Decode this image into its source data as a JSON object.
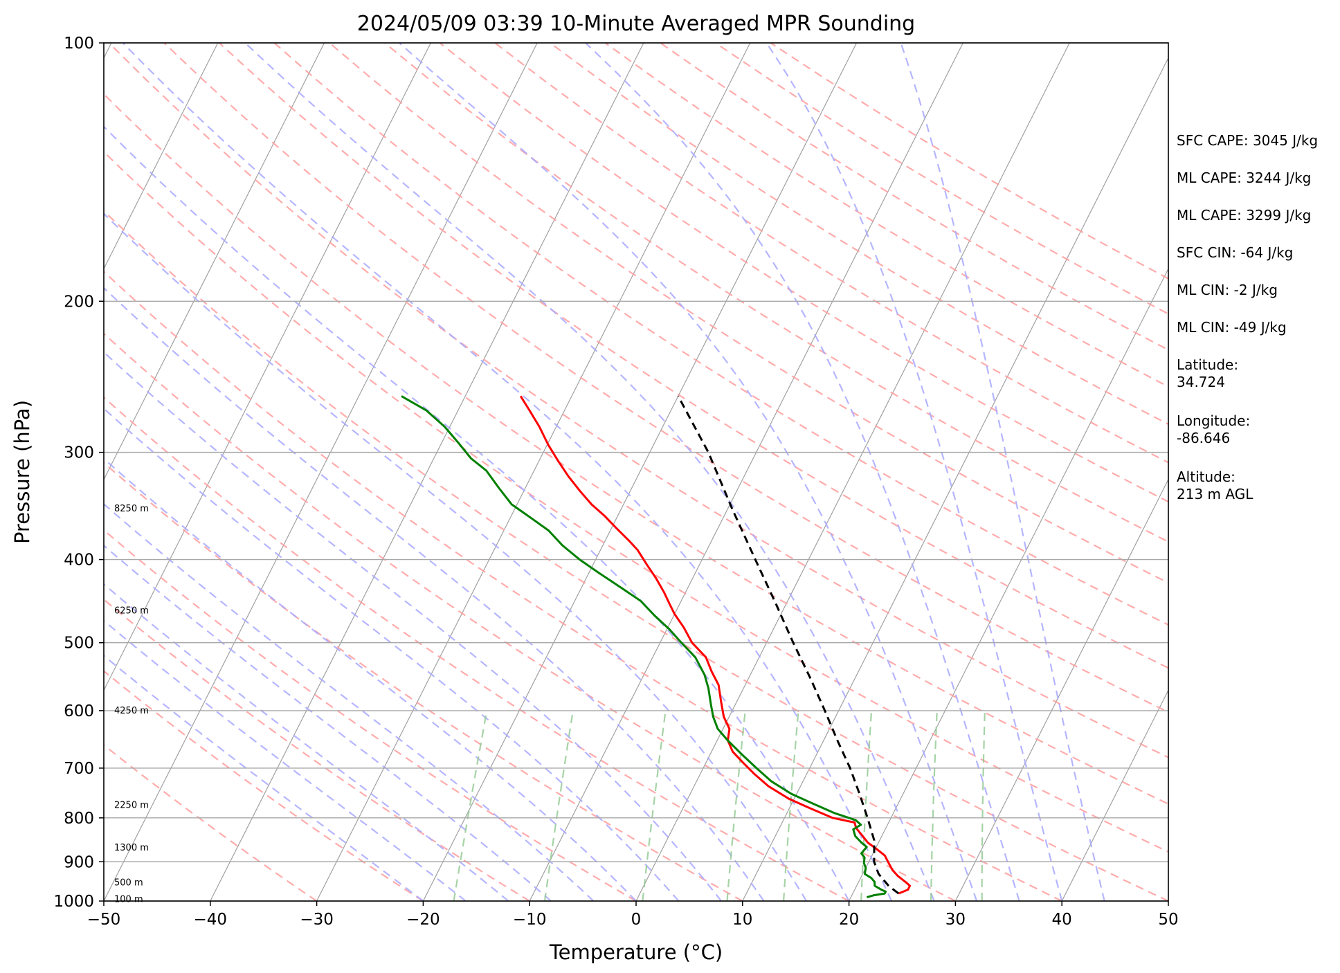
{
  "chart_data": {
    "type": "line",
    "title": "2024/05/09 03:39 10-Minute Averaged MPR Sounding",
    "xlabel": "Temperature (°C)",
    "ylabel": "Pressure (hPa)",
    "xlim": [
      -50,
      50
    ],
    "ylim": [
      1000,
      100
    ],
    "y_scale": "log",
    "x_ticks": [
      -50,
      -40,
      -30,
      -20,
      -10,
      0,
      10,
      20,
      30,
      40,
      50
    ],
    "x_tick_labels": [
      "−50",
      "−40",
      "−30",
      "−20",
      "−10",
      "0",
      "10",
      "20",
      "30",
      "40",
      "50"
    ],
    "y_ticks": [
      100,
      200,
      300,
      400,
      500,
      600,
      700,
      800,
      900,
      1000
    ],
    "y_tick_labels": [
      "100",
      "200",
      "300",
      "400",
      "500",
      "600",
      "700",
      "800",
      "900",
      "1000"
    ],
    "grid": true,
    "background_lines": {
      "isotherms_color": "#a0a0a0",
      "dry_adiabats_color": "#ff9c9c",
      "moist_adiabats_color": "#a8a8ff",
      "mixing_ratio_color": "#90c890"
    },
    "series": [
      {
        "color": "#ff0000",
        "style": "solid",
        "points": [
          [
            24.3,
            980
          ],
          [
            25.0,
            970
          ],
          [
            25.0,
            960
          ],
          [
            24.4,
            950
          ],
          [
            23.4,
            935
          ],
          [
            22.6,
            920
          ],
          [
            22.0,
            905
          ],
          [
            21.2,
            885
          ],
          [
            20.0,
            868
          ],
          [
            19.0,
            855
          ],
          [
            18.2,
            840
          ],
          [
            17.2,
            822
          ],
          [
            16.8,
            810
          ],
          [
            14.5,
            800
          ],
          [
            12.0,
            780
          ],
          [
            9.5,
            760
          ],
          [
            7.0,
            735
          ],
          [
            5.0,
            710
          ],
          [
            3.5,
            690
          ],
          [
            2.0,
            670
          ],
          [
            1.0,
            650
          ],
          [
            0.6,
            630
          ],
          [
            -0.5,
            610
          ],
          [
            -1.5,
            585
          ],
          [
            -2.5,
            560
          ],
          [
            -3.8,
            540
          ],
          [
            -5.0,
            520
          ],
          [
            -7.0,
            500
          ],
          [
            -8.5,
            480
          ],
          [
            -10.0,
            463
          ],
          [
            -11.0,
            450
          ],
          [
            -12.0,
            437
          ],
          [
            -13.5,
            420
          ],
          [
            -15.0,
            405
          ],
          [
            -16.5,
            390
          ],
          [
            -17.8,
            380
          ],
          [
            -19.5,
            368
          ],
          [
            -21.2,
            356
          ],
          [
            -23.0,
            345
          ],
          [
            -24.7,
            333
          ],
          [
            -26.5,
            320
          ],
          [
            -28.2,
            307
          ],
          [
            -29.9,
            294
          ],
          [
            -31.6,
            280
          ],
          [
            -33.3,
            268
          ],
          [
            -34.8,
            258
          ]
        ]
      },
      {
        "color": "#008000",
        "style": "solid",
        "points": [
          [
            21.5,
            990
          ],
          [
            22.0,
            985
          ],
          [
            23.0,
            980
          ],
          [
            23.0,
            975
          ],
          [
            22.5,
            970
          ],
          [
            21.7,
            960
          ],
          [
            21.5,
            950
          ],
          [
            21.0,
            940
          ],
          [
            20.2,
            930
          ],
          [
            20.0,
            915
          ],
          [
            19.6,
            903
          ],
          [
            19.4,
            890
          ],
          [
            18.9,
            880
          ],
          [
            19.1,
            865
          ],
          [
            18.4,
            855
          ],
          [
            17.5,
            840
          ],
          [
            17.0,
            825
          ],
          [
            17.5,
            815
          ],
          [
            16.8,
            805
          ],
          [
            14.5,
            790
          ],
          [
            12.0,
            770
          ],
          [
            9.5,
            750
          ],
          [
            7.0,
            725
          ],
          [
            5.0,
            700
          ],
          [
            3.0,
            675
          ],
          [
            1.0,
            650
          ],
          [
            -0.5,
            630
          ],
          [
            -1.5,
            610
          ],
          [
            -2.3,
            590
          ],
          [
            -3.3,
            565
          ],
          [
            -4.3,
            545
          ],
          [
            -6.0,
            520
          ],
          [
            -8.0,
            500
          ],
          [
            -9.8,
            482
          ],
          [
            -11.8,
            465
          ],
          [
            -13.8,
            447
          ],
          [
            -16.5,
            430
          ],
          [
            -19.0,
            415
          ],
          [
            -21.5,
            400
          ],
          [
            -23.8,
            385
          ],
          [
            -25.8,
            370
          ],
          [
            -28.0,
            358
          ],
          [
            -30.5,
            345
          ],
          [
            -32.5,
            330
          ],
          [
            -34.5,
            315
          ],
          [
            -36.5,
            305
          ],
          [
            -38.5,
            292
          ],
          [
            -40.5,
            280
          ],
          [
            -43.0,
            268
          ],
          [
            -46.0,
            258
          ]
        ]
      },
      {
        "color": "#000000",
        "style": "dashed",
        "points": [
          [
            24.3,
            980
          ],
          [
            23.0,
            960
          ],
          [
            21.5,
            930
          ],
          [
            20.5,
            900
          ],
          [
            19.5,
            850
          ],
          [
            17.8,
            800
          ],
          [
            15.9,
            750
          ],
          [
            13.8,
            700
          ],
          [
            11.3,
            650
          ],
          [
            8.7,
            600
          ],
          [
            5.8,
            550
          ],
          [
            2.5,
            500
          ],
          [
            -1.0,
            450
          ],
          [
            -5.0,
            400
          ],
          [
            -9.5,
            350
          ],
          [
            -14.5,
            300
          ],
          [
            -20.0,
            258
          ]
        ]
      }
    ],
    "height_labels": [
      {
        "text": "8250 m",
        "p": 349
      },
      {
        "text": "6250 m",
        "p": 459
      },
      {
        "text": "4250 m",
        "p": 600
      },
      {
        "text": "2250 m",
        "p": 773
      },
      {
        "text": "1300 m",
        "p": 867
      },
      {
        "text": "500 m",
        "p": 952
      },
      {
        "text": "100 m",
        "p": 995
      }
    ],
    "annotations": [
      "SFC CAPE: 3045 J/kg",
      "ML CAPE: 3244 J/kg",
      "ML CAPE: 3299 J/kg",
      "SFC CIN: -64 J/kg",
      "ML CIN: -2 J/kg",
      "ML CIN: -49 J/kg",
      "Latitude:\n34.724",
      "Longitude:\n-86.646",
      "Altitude:\n213 m AGL"
    ]
  }
}
